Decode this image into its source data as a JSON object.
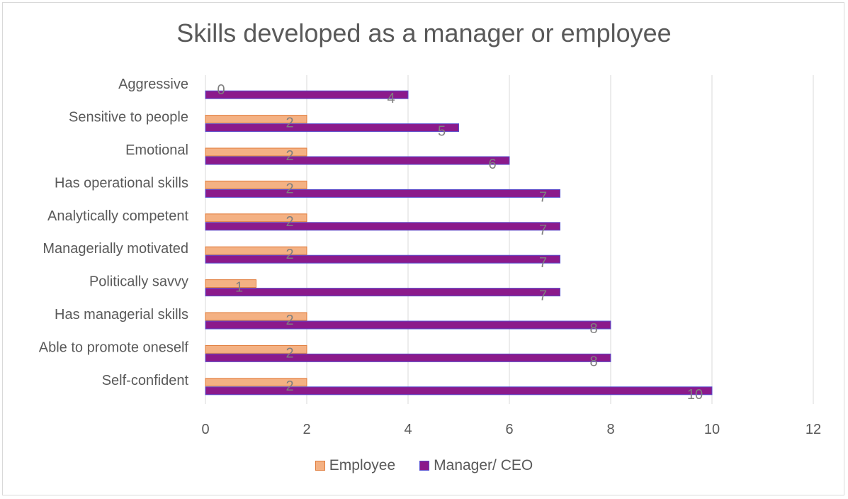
{
  "chart_data": {
    "type": "bar",
    "orientation": "horizontal",
    "title": "Skills developed as a manager or employee",
    "xlabel": "",
    "ylabel": "",
    "xlim": [
      0,
      12
    ],
    "xticks": [
      0,
      2,
      4,
      6,
      8,
      10,
      12
    ],
    "grid": true,
    "legend_position": "bottom",
    "categories": [
      "Aggressive",
      "Sensitive to people",
      "Emotional",
      "Has operational skills",
      "Analytically competent",
      "Managerially motivated",
      "Politically savvy",
      "Has managerial skills",
      "Able to promote oneself",
      "Self-confident"
    ],
    "series": [
      {
        "name": "Employee",
        "values": [
          0,
          2,
          2,
          2,
          2,
          2,
          1,
          2,
          2,
          2
        ],
        "color": "#f4b183",
        "edge": "#e07b3a"
      },
      {
        "name": "Manager/ CEO",
        "values": [
          4,
          5,
          6,
          7,
          7,
          7,
          7,
          8,
          8,
          10
        ],
        "color": "#8b1a8b",
        "edge": "#5a4fcf"
      }
    ]
  }
}
